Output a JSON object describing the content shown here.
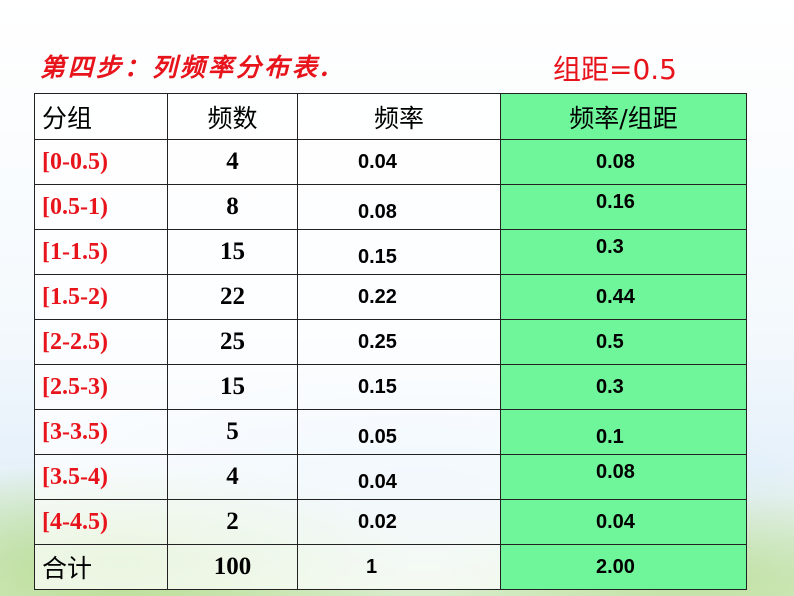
{
  "title": "第四步：列频率分布表.",
  "interval_label": "组距=0.5",
  "table": {
    "headers": [
      "分组",
      "频数",
      "频率",
      "频率/组距"
    ],
    "rows": [
      {
        "group": "[0-0.5)",
        "count": "4",
        "freq": "0.04",
        "density": "0.08"
      },
      {
        "group": "[0.5-1)",
        "count": "8",
        "freq": "0.08",
        "density": "0.16"
      },
      {
        "group": "[1-1.5)",
        "count": "15",
        "freq": "0.15",
        "density": "0.3"
      },
      {
        "group": "[1.5-2)",
        "count": "22",
        "freq": "0.22",
        "density": "0.44"
      },
      {
        "group": "[2-2.5)",
        "count": "25",
        "freq": "0.25",
        "density": "0.5"
      },
      {
        "group": "[2.5-3)",
        "count": "15",
        "freq": "0.15",
        "density": "0.3"
      },
      {
        "group": "[3-3.5)",
        "count": "5",
        "freq": "0.05",
        "density": "0.1"
      },
      {
        "group": "[3.5-4)",
        "count": "4",
        "freq": "0.04",
        "density": "0.08"
      },
      {
        "group": "[4-4.5)",
        "count": "2",
        "freq": "0.02",
        "density": "0.04"
      }
    ],
    "total": {
      "label": "合计",
      "count": "100",
      "freq": "1",
      "density": "2.00"
    }
  },
  "colors": {
    "title": "#e8141c",
    "group_text": "#e8141c",
    "density_fill": "#6ff59a"
  }
}
